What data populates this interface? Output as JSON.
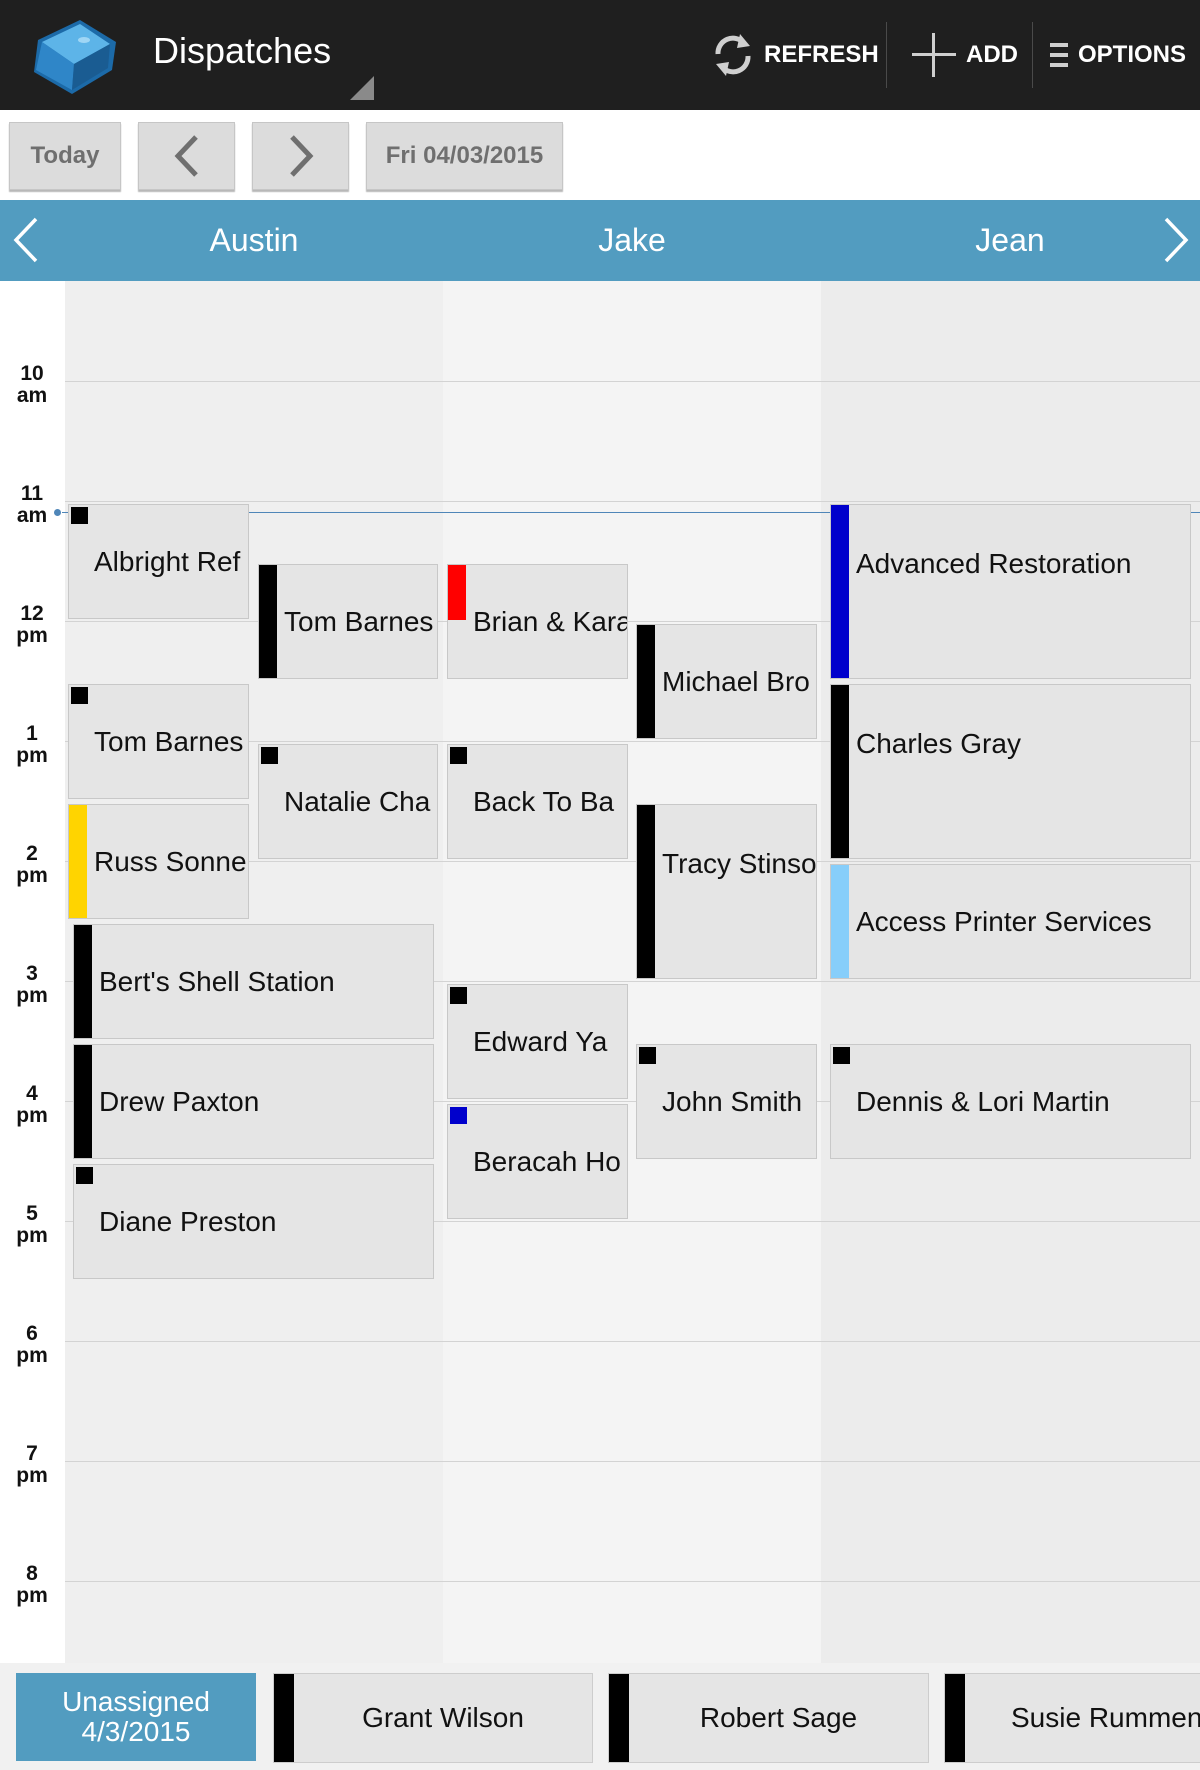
{
  "app": {
    "title": "Dispatches"
  },
  "actions": {
    "refresh": "REFRESH",
    "add": "ADD",
    "options": "OPTIONS"
  },
  "datebar": {
    "today": "Today",
    "date": "Fri 04/03/2015"
  },
  "technicians": [
    "Austin",
    "Jake",
    "Jean"
  ],
  "time_labels": [
    {
      "hour": "10",
      "ampm": "am"
    },
    {
      "hour": "11",
      "ampm": "am"
    },
    {
      "hour": "12",
      "ampm": "pm"
    },
    {
      "hour": "1",
      "ampm": "pm"
    },
    {
      "hour": "2",
      "ampm": "pm"
    },
    {
      "hour": "3",
      "ampm": "pm"
    },
    {
      "hour": "4",
      "ampm": "pm"
    },
    {
      "hour": "5",
      "ampm": "pm"
    },
    {
      "hour": "6",
      "ampm": "pm"
    },
    {
      "hour": "7",
      "ampm": "pm"
    },
    {
      "hour": "8",
      "ampm": "pm"
    }
  ],
  "events": [
    {
      "label": "Albright Ref",
      "technician": "Austin",
      "color": "#000000"
    },
    {
      "label": "Tom Barnes",
      "technician": "Austin",
      "color": "#000000"
    },
    {
      "label": "Russ Sonne",
      "technician": "Austin",
      "color": "#ffd400"
    },
    {
      "label": "Tom Barnes",
      "technician": "Austin",
      "color": "#000000"
    },
    {
      "label": "Natalie Cha",
      "technician": "Austin",
      "color": "#000000"
    },
    {
      "label": "Bert's Shell Station",
      "technician": "Austin",
      "color": "#000000"
    },
    {
      "label": "Drew Paxton",
      "technician": "Austin",
      "color": "#000000"
    },
    {
      "label": "Diane Preston",
      "technician": "Austin",
      "color": "#000000"
    },
    {
      "label": "Brian & Kara",
      "technician": "Jake",
      "color": "#ff0000"
    },
    {
      "label": "Back To Ba",
      "technician": "Jake",
      "color": "#000000"
    },
    {
      "label": "Edward Ya",
      "technician": "Jake",
      "color": "#000000"
    },
    {
      "label": "Beracah Ho",
      "technician": "Jake",
      "color": "#0000cc"
    },
    {
      "label": "Michael Bro",
      "technician": "Jake",
      "color": "#000000"
    },
    {
      "label": "Tracy Stinso",
      "technician": "Jake",
      "color": "#000000"
    },
    {
      "label": "John Smith",
      "technician": "Jake",
      "color": "#000000"
    },
    {
      "label": "Advanced Restoration",
      "technician": "Jean",
      "color": "#0000cc"
    },
    {
      "label": "Charles Gray",
      "technician": "Jean",
      "color": "#000000"
    },
    {
      "label": "Access Printer Services",
      "technician": "Jean",
      "color": "#87cefa"
    },
    {
      "label": "Dennis & Lori Martin",
      "technician": "Jean",
      "color": "#000000"
    }
  ],
  "unassigned": {
    "title": "Unassigned",
    "date": "4/3/2015",
    "items": [
      "Grant Wilson",
      "Robert Sage",
      "Susie Rummen"
    ]
  },
  "colors": {
    "accent": "#529cc0",
    "actionbar": "#1f1f1f"
  }
}
